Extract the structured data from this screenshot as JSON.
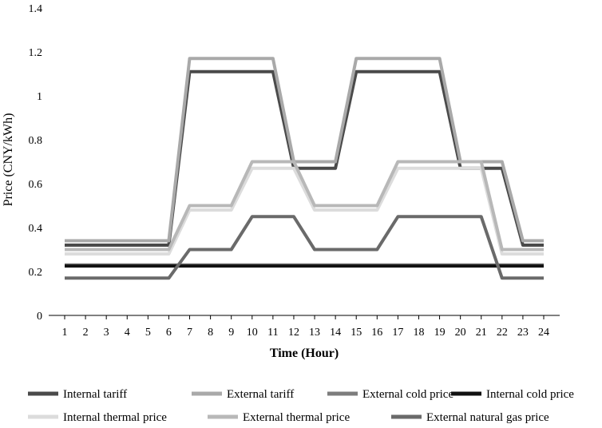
{
  "chart_data": {
    "type": "line",
    "title": "",
    "xlabel": "Time (Hour)",
    "ylabel": "Price (CNY/kWh)",
    "ylim": [
      0,
      1.4
    ],
    "yticks": [
      "0",
      "0.2",
      "0.4",
      "0.6",
      "0.8",
      "1",
      "1.2",
      "1.4"
    ],
    "x": [
      1,
      2,
      3,
      4,
      5,
      6,
      7,
      8,
      9,
      10,
      11,
      12,
      13,
      14,
      15,
      16,
      17,
      18,
      19,
      20,
      21,
      22,
      23,
      24
    ],
    "grid": false,
    "legend_position": "bottom",
    "series": [
      {
        "name": "Internal tariff",
        "color": "#4a4a4a",
        "values": [
          0.32,
          0.32,
          0.32,
          0.32,
          0.32,
          0.32,
          1.11,
          1.11,
          1.11,
          1.11,
          1.11,
          0.67,
          0.67,
          0.67,
          1.11,
          1.11,
          1.11,
          1.11,
          1.11,
          0.67,
          0.67,
          0.67,
          0.32,
          0.32
        ]
      },
      {
        "name": "External tariff",
        "color": "#a9a9a9",
        "values": [
          0.34,
          0.34,
          0.34,
          0.34,
          0.34,
          0.34,
          1.17,
          1.17,
          1.17,
          1.17,
          1.17,
          0.7,
          0.7,
          0.7,
          1.17,
          1.17,
          1.17,
          1.17,
          1.17,
          0.7,
          0.7,
          0.7,
          0.34,
          0.34
        ]
      },
      {
        "name": "External cold price",
        "color": "#7d7d7d",
        "values": [
          0.23,
          0.23,
          0.23,
          0.23,
          0.23,
          0.23,
          0.23,
          0.23,
          0.23,
          0.23,
          0.23,
          0.23,
          0.23,
          0.23,
          0.23,
          0.23,
          0.23,
          0.23,
          0.23,
          0.23,
          0.23,
          0.23,
          0.23,
          0.23
        ]
      },
      {
        "name": "Internal cold price",
        "color": "#111111",
        "values": [
          0.225,
          0.225,
          0.225,
          0.225,
          0.225,
          0.225,
          0.225,
          0.225,
          0.225,
          0.225,
          0.225,
          0.225,
          0.225,
          0.225,
          0.225,
          0.225,
          0.225,
          0.225,
          0.225,
          0.225,
          0.225,
          0.225,
          0.225,
          0.225
        ]
      },
      {
        "name": "Internal thermal price",
        "color": "#dcdcdc",
        "values": [
          0.28,
          0.28,
          0.28,
          0.28,
          0.28,
          0.28,
          0.48,
          0.48,
          0.48,
          0.67,
          0.67,
          0.67,
          0.48,
          0.48,
          0.48,
          0.48,
          0.67,
          0.67,
          0.67,
          0.67,
          0.67,
          0.28,
          0.28,
          0.28
        ]
      },
      {
        "name": "External thermal price",
        "color": "#b8b8b8",
        "values": [
          0.3,
          0.3,
          0.3,
          0.3,
          0.3,
          0.3,
          0.5,
          0.5,
          0.5,
          0.7,
          0.7,
          0.7,
          0.5,
          0.5,
          0.5,
          0.5,
          0.7,
          0.7,
          0.7,
          0.7,
          0.7,
          0.3,
          0.3,
          0.3
        ]
      },
      {
        "name": "External natural gas price",
        "color": "#6a6a6a",
        "values": [
          0.17,
          0.17,
          0.17,
          0.17,
          0.17,
          0.17,
          0.3,
          0.3,
          0.3,
          0.45,
          0.45,
          0.45,
          0.3,
          0.3,
          0.3,
          0.3,
          0.45,
          0.45,
          0.45,
          0.45,
          0.45,
          0.17,
          0.17,
          0.17
        ]
      }
    ]
  }
}
